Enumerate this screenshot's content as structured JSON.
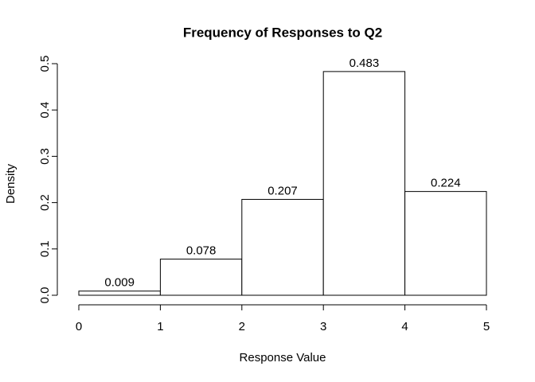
{
  "chart_data": {
    "type": "histogram",
    "title": "Frequency of Responses to Q2",
    "x_label": "Response Value",
    "y_label": "Density",
    "bins": [
      0,
      1,
      2,
      3,
      4,
      5
    ],
    "values": [
      0.009,
      0.078,
      0.207,
      0.483,
      0.224
    ],
    "color": "#ffffff",
    "xlim": [
      0,
      5
    ],
    "xticks": [
      0,
      1,
      2,
      3,
      4,
      5
    ],
    "ylim": [
      0,
      0.5
    ],
    "yticks": [
      {
        "value": 0,
        "label": "0.0"
      },
      0.1,
      0.2,
      0.3,
      0.4,
      0.5
    ]
  }
}
